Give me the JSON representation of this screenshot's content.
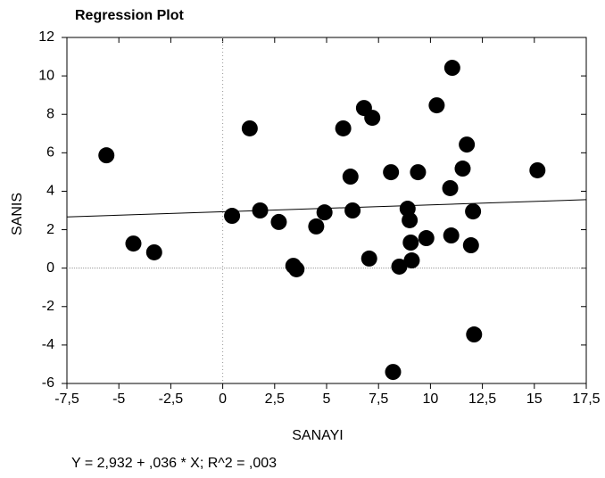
{
  "chart_data": {
    "type": "scatter",
    "title": "Regression Plot",
    "xlabel": "SANAYI",
    "ylabel": "SANIS",
    "annotation": "Y = 2,932 + ,036 * X; R^2 = ,003",
    "fit": {
      "intercept": 2.932,
      "slope": 0.036
    },
    "color": "#000000",
    "zero_lines": true,
    "x": [
      -5.6,
      -4.3,
      -3.3,
      1.3,
      0.45,
      1.8,
      2.7,
      3.4,
      3.55,
      4.5,
      4.9,
      5.8,
      6.15,
      6.25,
      6.8,
      7.2,
      7.05,
      8.1,
      8.2,
      8.5,
      8.9,
      9.0,
      9.05,
      9.1,
      9.4,
      9.8,
      10.3,
      11.05,
      10.95,
      11.0,
      11.55,
      11.75,
      12.05,
      11.95,
      12.1,
      15.15
    ],
    "y": [
      5.87,
      1.28,
      0.82,
      7.27,
      2.72,
      3.0,
      2.4,
      0.12,
      -0.06,
      2.17,
      2.9,
      7.27,
      4.76,
      3.0,
      8.33,
      7.82,
      0.5,
      4.99,
      -5.4,
      0.08,
      3.09,
      2.49,
      1.33,
      0.4,
      4.99,
      1.56,
      8.47,
      10.42,
      4.16,
      1.7,
      5.18,
      6.43,
      2.95,
      1.19,
      -3.45,
      5.09
    ],
    "xlim": [
      -7.5,
      17.5
    ],
    "xticks": [
      {
        "value": -7.5,
        "label": "-7,5"
      },
      -5,
      {
        "value": -2.5,
        "label": "-2,5"
      },
      0,
      {
        "value": 2.5,
        "label": "2,5"
      },
      5,
      {
        "value": 7.5,
        "label": "7,5"
      },
      10,
      {
        "value": 12.5,
        "label": "12,5"
      },
      15,
      {
        "value": 17.5,
        "label": "17,5"
      }
    ],
    "ylim": [
      -6,
      12
    ],
    "yticks": [
      -6,
      -4,
      -2,
      0,
      2,
      4,
      6,
      8,
      10,
      12
    ]
  }
}
